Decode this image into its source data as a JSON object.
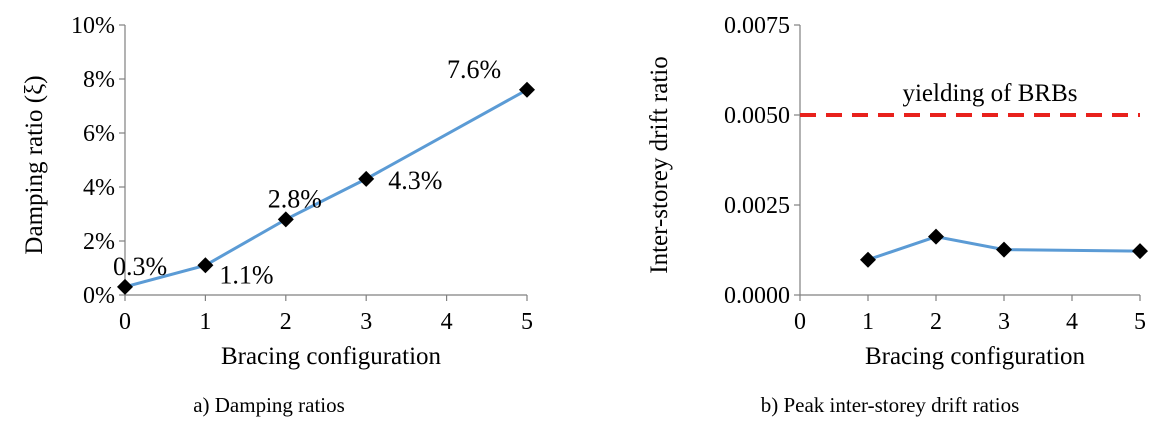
{
  "chart_data": [
    {
      "id": "damping",
      "type": "line",
      "caption": "a) Damping ratios",
      "xlabel": "Bracing configuration",
      "ylabel": "Damping ratio (ξ)",
      "x": [
        0,
        1,
        2,
        3,
        5
      ],
      "values": [
        0.3,
        1.1,
        2.8,
        4.3,
        7.6
      ],
      "data_labels": [
        "0.3%",
        "1.1%",
        "2.8%",
        "4.3%",
        "7.6%"
      ],
      "xlim": [
        0,
        5
      ],
      "xticks": [
        "0",
        "1",
        "2",
        "3",
        "4",
        "5"
      ],
      "ylim": [
        0,
        10
      ],
      "yticks": [
        "0%",
        "2%",
        "4%",
        "6%",
        "8%",
        "10%"
      ],
      "yunit": "%",
      "grid": false,
      "marker": "diamond",
      "line_color": "#5b9bd5",
      "marker_color": "#000000"
    },
    {
      "id": "drift",
      "type": "line",
      "caption": "b) Peak inter-storey drift ratios",
      "xlabel": "Bracing configuration",
      "ylabel": "Inter-storey drift ratio",
      "x": [
        1,
        2,
        3,
        5
      ],
      "values": [
        0.00098,
        0.00162,
        0.00126,
        0.00122
      ],
      "xlim": [
        0,
        5
      ],
      "xticks": [
        "0",
        "1",
        "2",
        "3",
        "4",
        "5"
      ],
      "ylim": [
        0,
        0.0075
      ],
      "yticks": [
        "0.0000",
        "0.0025",
        "0.0050",
        "0.0075"
      ],
      "grid": false,
      "marker": "diamond",
      "line_color": "#5b9bd5",
      "marker_color": "#000000",
      "reference_line": {
        "value": 0.005,
        "label": "yielding of BRBs",
        "color": "#e8211c",
        "style": "dashed"
      }
    }
  ]
}
